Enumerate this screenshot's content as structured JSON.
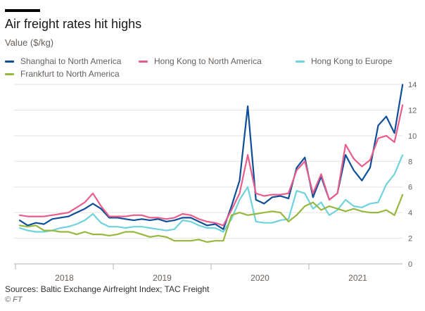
{
  "header": {
    "title": "Air freight rates hit highs",
    "subtitle": "Value ($/kg)"
  },
  "footer": {
    "source": "Sources: Baltic Exchange Airfreight Index; TAC Freight",
    "credit": "© FT"
  },
  "chart_data": {
    "type": "line",
    "title": "Air freight rates hit highs",
    "ylabel": "Value ($/kg)",
    "xlabel": "",
    "ylim": [
      0,
      14
    ],
    "yticks": [
      0,
      2,
      4,
      6,
      8,
      10,
      12,
      14
    ],
    "xticks": [
      "2018",
      "2019",
      "2020",
      "2021"
    ],
    "grid": true,
    "legend_position": "top-left",
    "x": [
      "2018-01",
      "2018-02",
      "2018-03",
      "2018-04",
      "2018-05",
      "2018-06",
      "2018-07",
      "2018-08",
      "2018-09",
      "2018-10",
      "2018-11",
      "2018-12",
      "2019-01",
      "2019-02",
      "2019-03",
      "2019-04",
      "2019-05",
      "2019-06",
      "2019-07",
      "2019-08",
      "2019-09",
      "2019-10",
      "2019-11",
      "2019-12",
      "2020-01",
      "2020-02",
      "2020-03",
      "2020-04",
      "2020-05",
      "2020-06",
      "2020-07",
      "2020-08",
      "2020-09",
      "2020-10",
      "2020-11",
      "2020-12",
      "2021-01",
      "2021-02",
      "2021-03",
      "2021-04",
      "2021-05",
      "2021-06",
      "2021-07",
      "2021-08",
      "2021-09",
      "2021-10",
      "2021-11",
      "2021-12"
    ],
    "series": [
      {
        "name": "Shanghai to North America",
        "color": "#0f4f99",
        "values": [
          3.4,
          3.0,
          3.2,
          3.1,
          3.5,
          3.6,
          3.7,
          4.0,
          4.3,
          4.7,
          4.3,
          3.6,
          3.6,
          3.5,
          3.4,
          3.5,
          3.4,
          3.5,
          3.3,
          3.4,
          3.6,
          3.6,
          3.3,
          3.0,
          3.1,
          2.7,
          4.5,
          6.5,
          12.3,
          5.0,
          4.7,
          5.2,
          5.3,
          5.1,
          7.5,
          8.3,
          5.2,
          6.8,
          5.0,
          5.5,
          8.5,
          7.3,
          6.5,
          7.5,
          10.8,
          11.5,
          10.2,
          14.0
        ]
      },
      {
        "name": "Hong Kong to North America",
        "color": "#e95d8c",
        "values": [
          3.8,
          3.7,
          3.7,
          3.7,
          3.8,
          3.9,
          4.0,
          4.4,
          4.8,
          5.5,
          4.5,
          3.7,
          3.7,
          3.7,
          3.8,
          3.8,
          3.6,
          3.6,
          3.5,
          3.6,
          3.9,
          3.8,
          3.5,
          3.3,
          3.2,
          3.0,
          4.2,
          5.5,
          8.5,
          5.5,
          5.3,
          5.4,
          5.4,
          5.5,
          7.3,
          8.0,
          5.5,
          7.0,
          5.0,
          5.5,
          9.3,
          8.2,
          7.6,
          8.1,
          9.8,
          10.0,
          9.5,
          12.4
        ]
      },
      {
        "name": "Hong Kong to Europe",
        "color": "#6fd3dd",
        "values": [
          2.8,
          2.6,
          2.5,
          2.5,
          2.6,
          2.8,
          2.9,
          3.1,
          3.4,
          3.9,
          3.2,
          2.9,
          2.9,
          2.8,
          2.9,
          2.9,
          2.8,
          2.7,
          2.6,
          2.7,
          3.4,
          3.3,
          3.0,
          2.8,
          2.8,
          2.5,
          3.5,
          5.0,
          6.0,
          3.3,
          3.2,
          3.2,
          3.4,
          3.5,
          5.7,
          5.5,
          4.3,
          4.8,
          3.8,
          4.2,
          5.0,
          4.5,
          4.4,
          4.7,
          4.8,
          6.2,
          7.0,
          8.5
        ]
      },
      {
        "name": "Frankfurt to North America",
        "color": "#96b83f",
        "values": [
          3.0,
          2.9,
          3.0,
          2.6,
          2.6,
          2.5,
          2.5,
          2.3,
          2.5,
          2.3,
          2.3,
          2.2,
          2.3,
          2.5,
          2.5,
          2.3,
          2.1,
          2.2,
          2.1,
          1.8,
          1.8,
          1.8,
          1.9,
          1.7,
          1.8,
          1.8,
          3.8,
          4.0,
          3.8,
          3.9,
          4.0,
          4.1,
          4.0,
          3.3,
          3.8,
          4.5,
          4.8,
          4.2,
          4.5,
          4.3,
          4.1,
          4.3,
          4.1,
          4.0,
          4.0,
          4.2,
          3.8,
          5.4
        ]
      }
    ]
  }
}
